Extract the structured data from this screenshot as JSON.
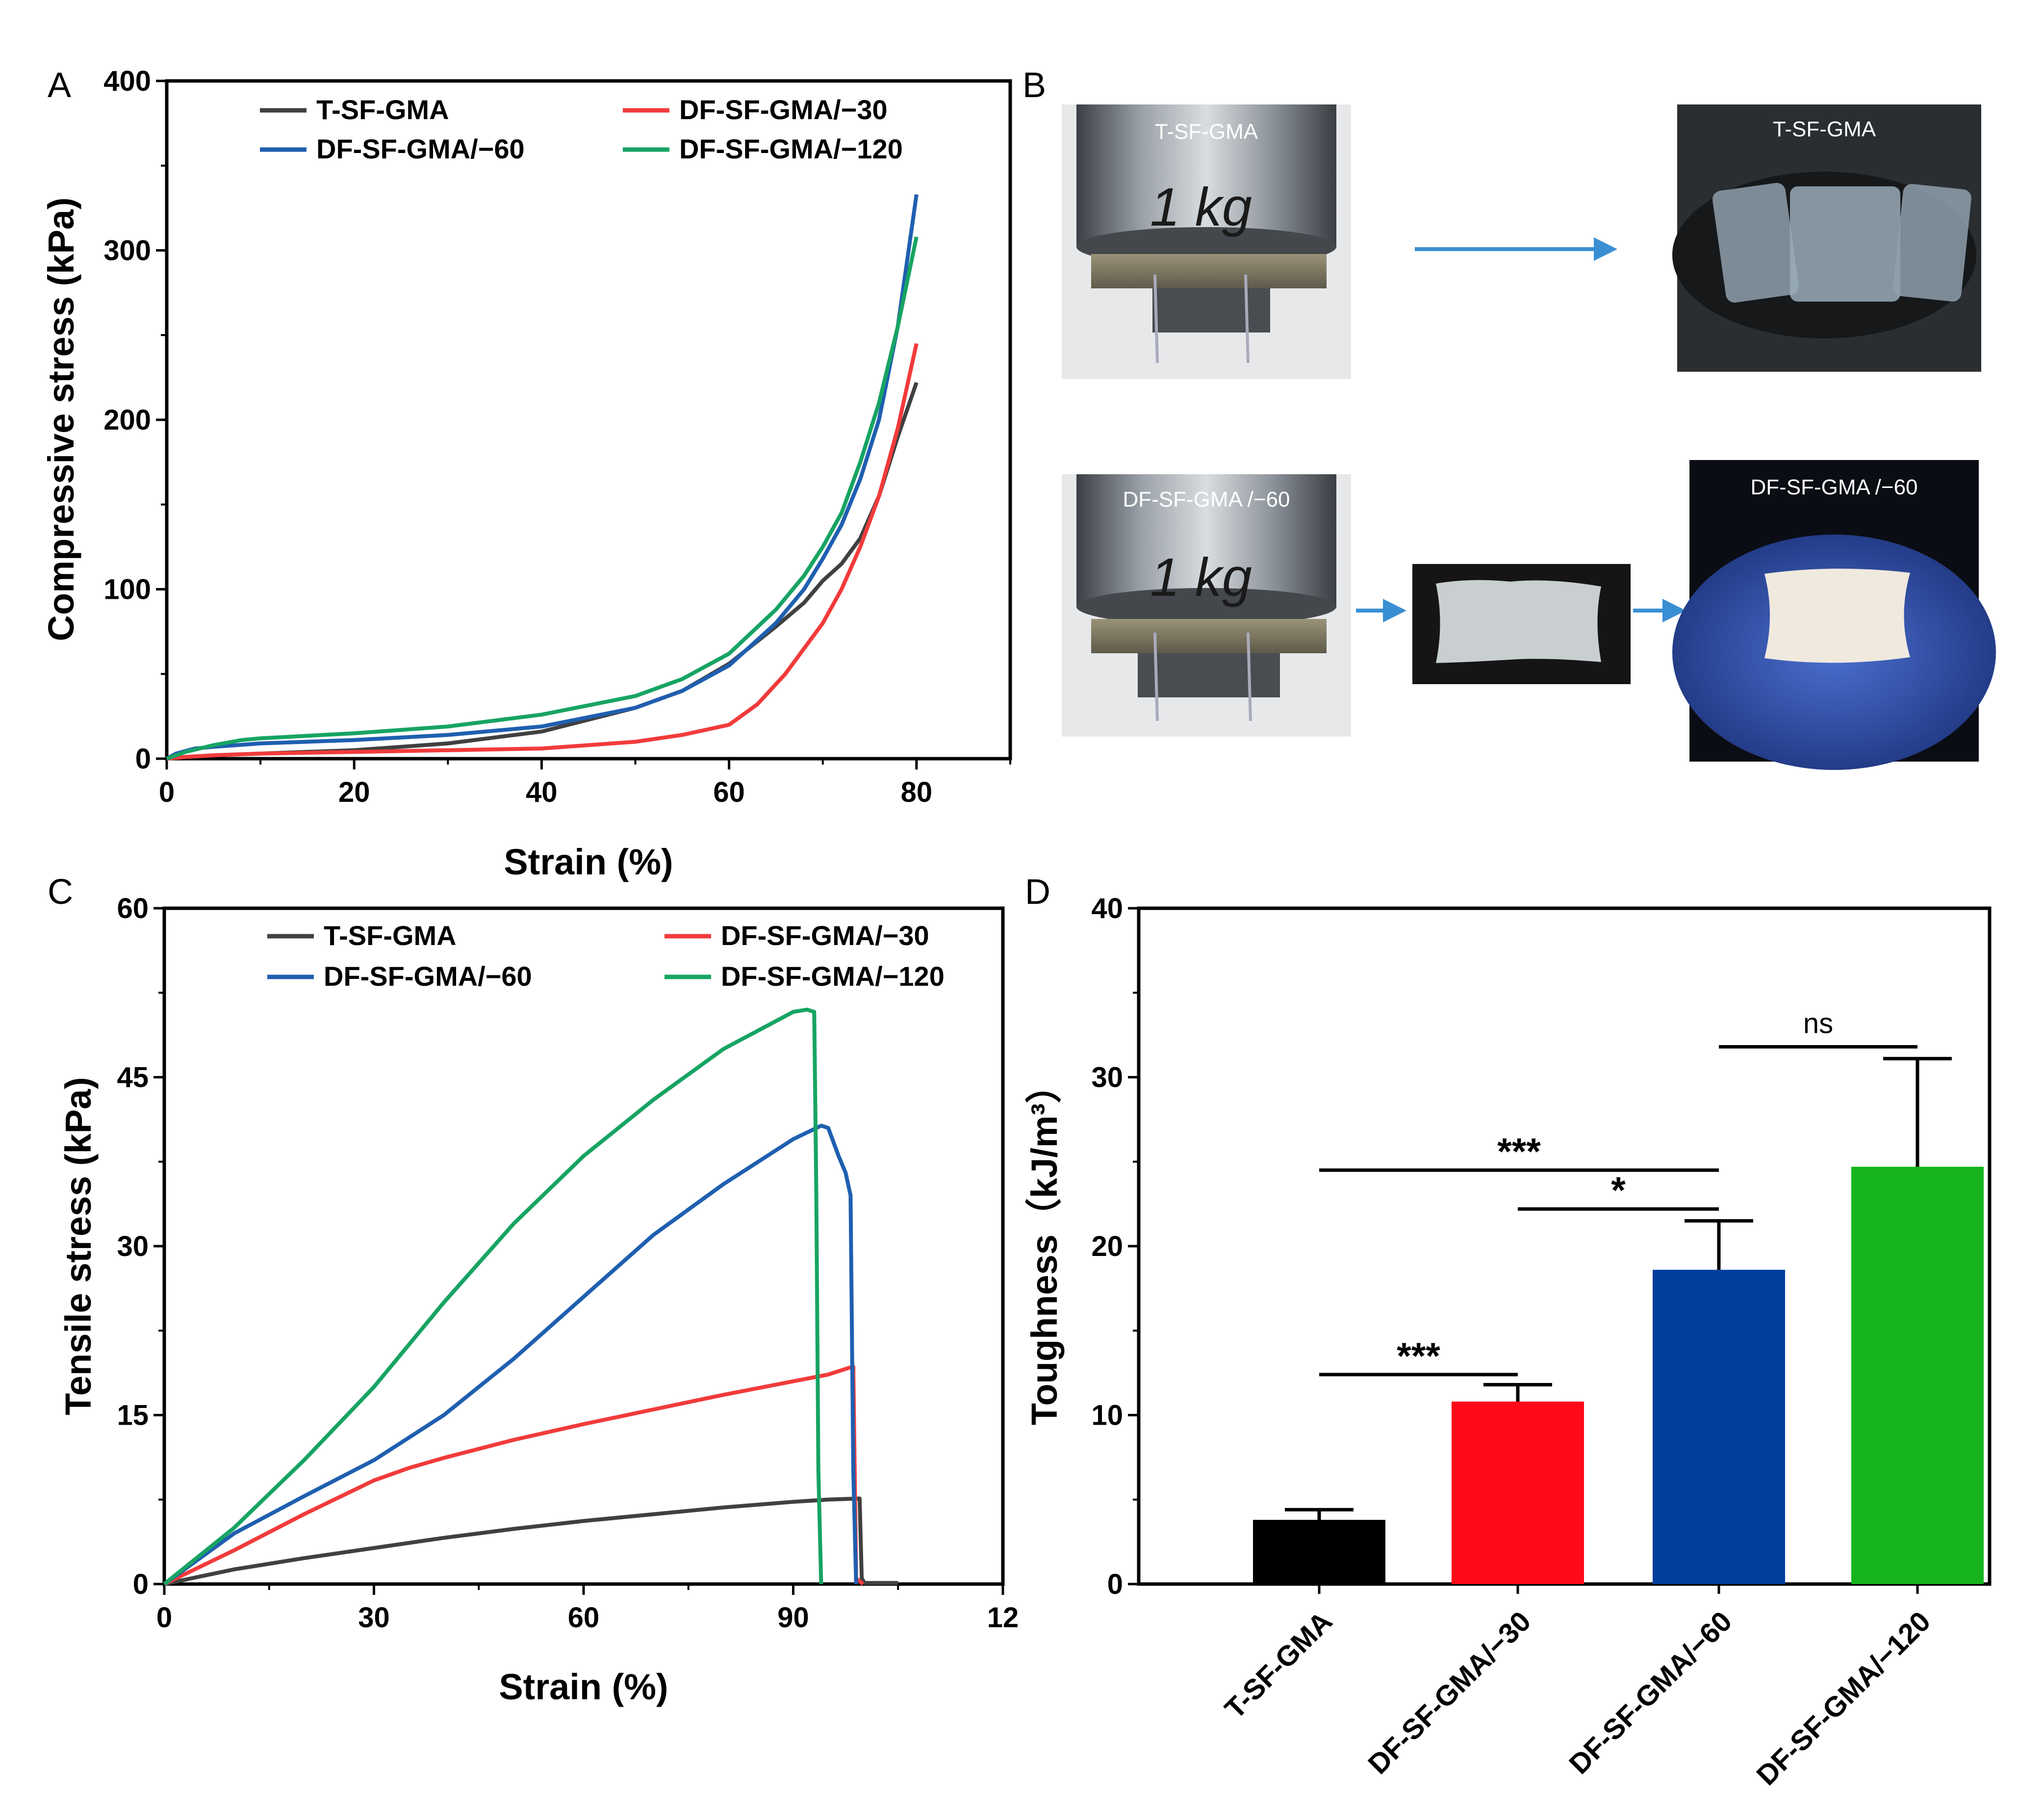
{
  "panels": {
    "a": "A",
    "b": "B",
    "c": "C",
    "d": "D"
  },
  "colors": {
    "black": "#404040",
    "red": "#f23b3b",
    "blue": "#1f5fb0",
    "green": "#17a463",
    "bar_black": "#000000",
    "bar_red": "#ff0a17",
    "bar_blue": "#003e9b",
    "bar_green": "#17b51d",
    "arrow": "#3a8fd3"
  },
  "photos": {
    "top_left_label": "T-SF-GMA",
    "top_left_weight": "1 kg",
    "top_right_label": "T-SF-GMA",
    "bottom_left_label": "DF-SF-GMA /−60",
    "bottom_left_weight": "1 kg",
    "bottom_right_label": "DF-SF-GMA /−60"
  },
  "chart_data": [
    {
      "type": "line",
      "panel": "A",
      "xlabel": "Strain (%)",
      "ylabel": "Compressive stress (kPa)",
      "xlim": [
        0,
        90
      ],
      "ylim": [
        0,
        400
      ],
      "xticks": [
        "0",
        "20",
        "40",
        "60",
        "80"
      ],
      "yticks": [
        "0",
        "100",
        "200",
        "300",
        "400"
      ],
      "legend": "top-left, two columns",
      "series": [
        {
          "name": "T-SF-GMA",
          "color": "black",
          "x": [
            0,
            2,
            5,
            10,
            20,
            30,
            40,
            50,
            55,
            60,
            65,
            68,
            70,
            72,
            74,
            76,
            78,
            80
          ],
          "y": [
            0,
            1,
            2,
            3,
            5,
            9,
            16,
            30,
            40,
            56,
            78,
            92,
            105,
            115,
            130,
            155,
            190,
            222
          ]
        },
        {
          "name": "DF-SF-GMA/−30",
          "color": "red",
          "x": [
            0,
            2,
            5,
            10,
            20,
            30,
            40,
            50,
            55,
            60,
            63,
            66,
            70,
            72,
            74,
            76,
            78,
            80
          ],
          "y": [
            0,
            1,
            2,
            3,
            4,
            5,
            6,
            10,
            14,
            20,
            32,
            50,
            80,
            100,
            125,
            155,
            195,
            245
          ]
        },
        {
          "name": "DF-SF-GMA/−60",
          "color": "blue",
          "x": [
            0,
            1,
            3,
            5,
            10,
            20,
            30,
            40,
            50,
            55,
            60,
            65,
            68,
            70,
            72,
            74,
            76,
            78,
            80
          ],
          "y": [
            0,
            3,
            6,
            7,
            9,
            11,
            14,
            19,
            30,
            40,
            55,
            80,
            100,
            118,
            138,
            165,
            200,
            255,
            333
          ]
        },
        {
          "name": "DF-SF-GMA/−120",
          "color": "green",
          "x": [
            0,
            2,
            5,
            8,
            10,
            20,
            30,
            40,
            50,
            55,
            60,
            65,
            68,
            70,
            72,
            74,
            76,
            78,
            80
          ],
          "y": [
            0,
            4,
            8,
            11,
            12,
            15,
            19,
            26,
            37,
            47,
            62,
            88,
            108,
            125,
            145,
            175,
            210,
            255,
            308
          ]
        }
      ]
    },
    {
      "type": "line",
      "panel": "C",
      "xlabel": "Strain (%)",
      "ylabel": "Tensile stress (kPa)",
      "xlim": [
        0,
        120
      ],
      "ylim": [
        0,
        60
      ],
      "xticks": [
        "0",
        "30",
        "60",
        "90",
        "12"
      ],
      "yticks": [
        "0",
        "15",
        "30",
        "45",
        "60"
      ],
      "legend": "top, two columns",
      "series": [
        {
          "name": "T-SF-GMA",
          "color": "black",
          "x": [
            0,
            10,
            20,
            30,
            40,
            50,
            60,
            70,
            80,
            90,
            95,
            99.5,
            99.8,
            100.2,
            105
          ],
          "y": [
            0,
            1.3,
            2.3,
            3.2,
            4.1,
            4.9,
            5.6,
            6.2,
            6.8,
            7.3,
            7.5,
            7.6,
            0.5,
            0.1,
            0.1
          ]
        },
        {
          "name": "DF-SF-GMA/−30",
          "color": "red",
          "x": [
            0,
            10,
            20,
            30,
            35,
            40,
            50,
            60,
            70,
            80,
            90,
            95,
            98,
            98.6,
            99,
            100
          ],
          "y": [
            0,
            3,
            6.2,
            9.2,
            10.3,
            11.2,
            12.8,
            14.2,
            15.5,
            16.8,
            18,
            18.6,
            19.2,
            19.3,
            0.5,
            0
          ]
        },
        {
          "name": "DF-SF-GMA/−60",
          "color": "blue",
          "x": [
            0,
            10,
            20,
            30,
            40,
            50,
            60,
            70,
            80,
            90,
            94,
            95,
            96.5,
            97.5,
            98.2,
            98.6,
            99
          ],
          "y": [
            0,
            4.5,
            7.8,
            11,
            15,
            20,
            25.5,
            31,
            35.5,
            39.5,
            40.7,
            40.5,
            38,
            36.5,
            34.5,
            10,
            0
          ]
        },
        {
          "name": "DF-SF-GMA/−120",
          "color": "green",
          "x": [
            0,
            10,
            20,
            30,
            40,
            50,
            60,
            70,
            80,
            90,
            92,
            93,
            93.3,
            93.6,
            94
          ],
          "y": [
            0,
            5,
            11,
            17.5,
            25,
            32,
            38,
            43,
            47.5,
            50.8,
            51,
            50.8,
            35,
            10,
            0
          ]
        }
      ]
    },
    {
      "type": "bar",
      "panel": "D",
      "ylabel": "Toughness（kJ/m³）",
      "ylim": [
        0,
        40
      ],
      "yticks": [
        "0",
        "10",
        "20",
        "30",
        "40"
      ],
      "categories": [
        "T-SF-GMA",
        "DF-SF-GMA/−30",
        "DF-SF-GMA/−60",
        "DF-SF-GMA/−120"
      ],
      "values": [
        3.8,
        10.8,
        18.6,
        24.7
      ],
      "errors": [
        0.6,
        1.0,
        2.9,
        6.4
      ],
      "colors": [
        "bar_black",
        "bar_red",
        "bar_blue",
        "bar_green"
      ],
      "significance": [
        {
          "from": 0,
          "to": 1,
          "label": "***",
          "level": 12.4
        },
        {
          "from": 0,
          "to": 2,
          "label": "***",
          "level": 24.5
        },
        {
          "from": 1,
          "to": 2,
          "label": "*",
          "level": 22.2
        },
        {
          "from": 2,
          "to": 3,
          "label": "ns",
          "level": 31.8
        }
      ]
    }
  ]
}
